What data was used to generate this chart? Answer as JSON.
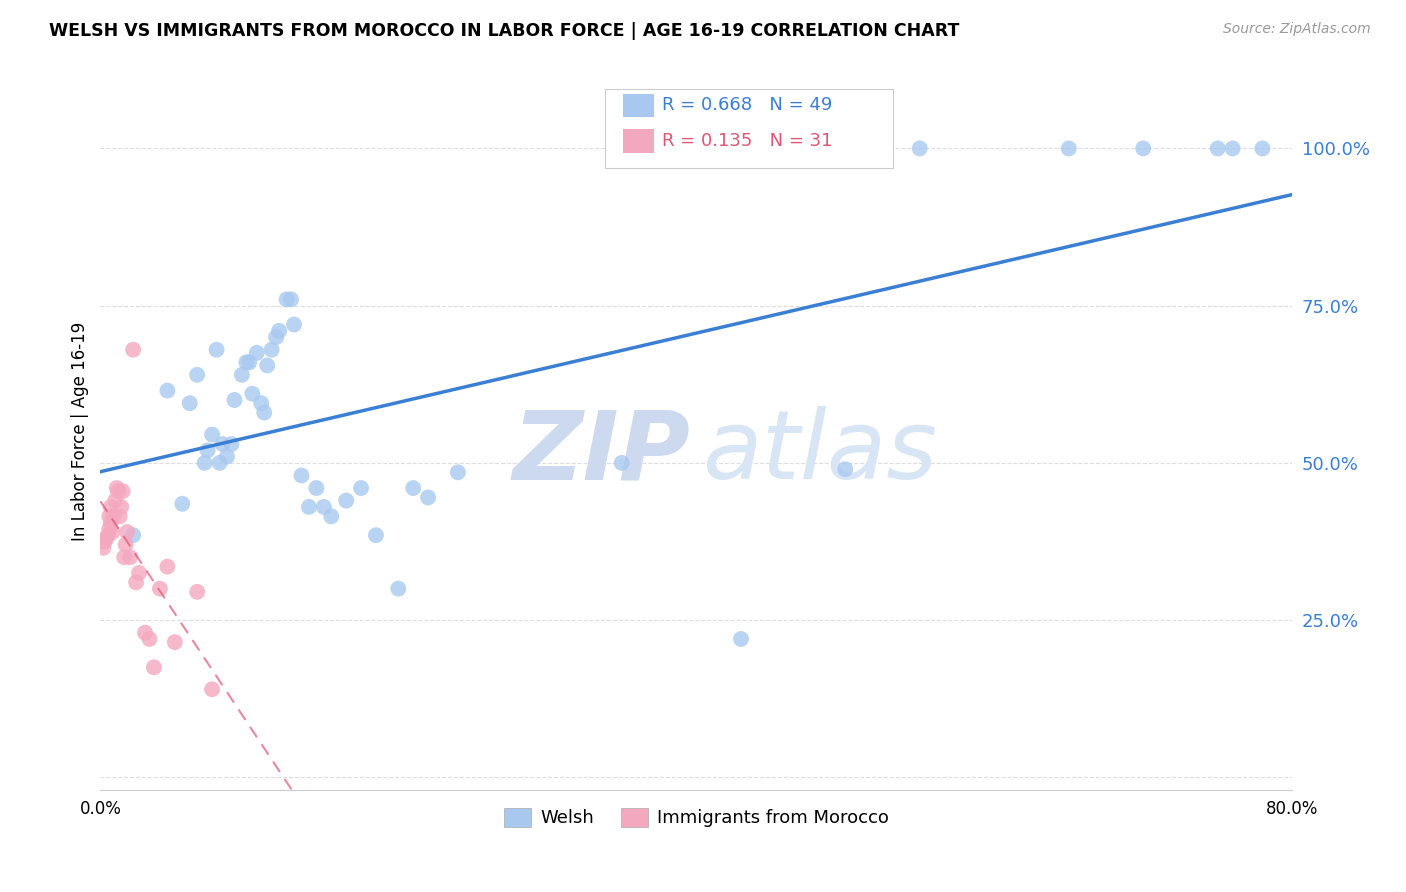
{
  "title": "WELSH VS IMMIGRANTS FROM MOROCCO IN LABOR FORCE | AGE 16-19 CORRELATION CHART",
  "source": "Source: ZipAtlas.com",
  "ylabel": "In Labor Force | Age 16-19",
  "xlim": [
    0.0,
    0.8
  ],
  "ylim": [
    -0.02,
    1.12
  ],
  "yticks": [
    0.0,
    0.25,
    0.5,
    0.75,
    1.0
  ],
  "ytick_labels": [
    "",
    "25.0%",
    "50.0%",
    "75.0%",
    "100.0%"
  ],
  "xticks": [
    0.0,
    0.1,
    0.2,
    0.3,
    0.4,
    0.5,
    0.6,
    0.7,
    0.8
  ],
  "xtick_labels": [
    "0.0%",
    "",
    "",
    "",
    "",
    "",
    "",
    "",
    "80.0%"
  ],
  "welsh_R": 0.668,
  "welsh_N": 49,
  "morocco_R": 0.135,
  "morocco_N": 31,
  "welsh_color": "#a8c8f0",
  "morocco_color": "#f4a8c0",
  "welsh_line_color": "#3a7fd4",
  "morocco_line_color": "#e05575",
  "watermark_zip_color": "#ccd9ef",
  "watermark_atlas_color": "#d8e5f5",
  "welsh_x": [
    0.022,
    0.045,
    0.055,
    0.06,
    0.065,
    0.07,
    0.072,
    0.075,
    0.078,
    0.08,
    0.082,
    0.085,
    0.088,
    0.09,
    0.095,
    0.098,
    0.1,
    0.102,
    0.105,
    0.108,
    0.11,
    0.112,
    0.115,
    0.118,
    0.12,
    0.125,
    0.128,
    0.13,
    0.135,
    0.14,
    0.145,
    0.15,
    0.155,
    0.165,
    0.175,
    0.185,
    0.2,
    0.21,
    0.22,
    0.24,
    0.35,
    0.43,
    0.5,
    0.55,
    0.65,
    0.7,
    0.75,
    0.76,
    0.78
  ],
  "welsh_y": [
    0.385,
    0.615,
    0.435,
    0.595,
    0.64,
    0.5,
    0.52,
    0.545,
    0.68,
    0.5,
    0.53,
    0.51,
    0.53,
    0.6,
    0.64,
    0.66,
    0.66,
    0.61,
    0.675,
    0.595,
    0.58,
    0.655,
    0.68,
    0.7,
    0.71,
    0.76,
    0.76,
    0.72,
    0.48,
    0.43,
    0.46,
    0.43,
    0.415,
    0.44,
    0.46,
    0.385,
    0.3,
    0.46,
    0.445,
    0.485,
    0.5,
    0.22,
    0.49,
    1.0,
    1.0,
    1.0,
    1.0,
    1.0,
    1.0
  ],
  "morocco_x": [
    0.002,
    0.003,
    0.004,
    0.005,
    0.006,
    0.006,
    0.007,
    0.007,
    0.008,
    0.009,
    0.01,
    0.011,
    0.012,
    0.013,
    0.014,
    0.015,
    0.016,
    0.017,
    0.018,
    0.02,
    0.022,
    0.024,
    0.026,
    0.03,
    0.033,
    0.036,
    0.04,
    0.045,
    0.05,
    0.065,
    0.075
  ],
  "morocco_y": [
    0.365,
    0.375,
    0.38,
    0.385,
    0.395,
    0.415,
    0.405,
    0.43,
    0.39,
    0.415,
    0.44,
    0.46,
    0.455,
    0.415,
    0.43,
    0.455,
    0.35,
    0.37,
    0.39,
    0.35,
    0.68,
    0.31,
    0.325,
    0.23,
    0.22,
    0.175,
    0.3,
    0.335,
    0.215,
    0.295,
    0.14
  ]
}
